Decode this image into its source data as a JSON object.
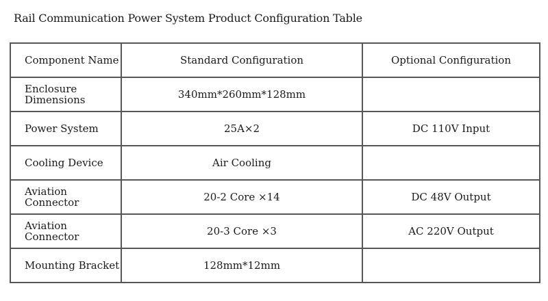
{
  "title": "Rail Communication Power System Product Configuration Table",
  "table": {
    "headers": [
      "Component Name",
      "Standard Configuration",
      "Optional Configuration"
    ],
    "rows": [
      [
        "Enclosure Dimensions",
        "340mm*260mm*128mm",
        ""
      ],
      [
        "Power System",
        "25A×2",
        "DC 110V Input"
      ],
      [
        "Cooling Device",
        "Air Cooling",
        ""
      ],
      [
        "Aviation Connector",
        "20-2 Core ×14",
        "DC 48V Output"
      ],
      [
        "Aviation Connector",
        "20-3 Core ×3",
        "AC 220V Output"
      ],
      [
        "Mounting Bracket",
        "128mm*12mm",
        ""
      ]
    ]
  }
}
